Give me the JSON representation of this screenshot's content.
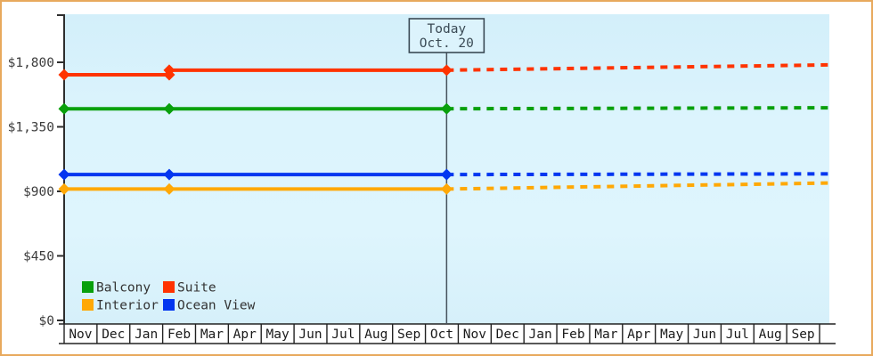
{
  "colors": {
    "frame_border": "#E8A95D",
    "plot_bg_top": "#D3EFFA",
    "plot_bg_mid": "#DDF5FD",
    "plot_bg_bottom": "#D6F0FA",
    "axis": "#2E2E2E",
    "axis_text": "#3C3C3C",
    "month_text": "#1A1A1A",
    "today_line": "#46525C",
    "today_box_fill": "#DCF3FC",
    "today_box_border": "#3A4A55",
    "legend_text": "#333333"
  },
  "chart_data": {
    "type": "line",
    "title": "",
    "xlabel": "",
    "ylabel": "",
    "ylim": [
      0,
      1800
    ],
    "xlim_months": [
      0,
      23.3
    ],
    "grid": false,
    "history_style": "solid",
    "forecast_style": "dotted",
    "y_ticks": [
      {
        "label": "$0",
        "value": 0
      },
      {
        "label": "$450",
        "value": 450
      },
      {
        "label": "$900",
        "value": 900
      },
      {
        "label": "$1,350",
        "value": 1350
      },
      {
        "label": "$1,800",
        "value": 1800
      }
    ],
    "x_axis_months": [
      "Nov",
      "Dec",
      "Jan",
      "Feb",
      "Mar",
      "Apr",
      "May",
      "Jun",
      "Jul",
      "Aug",
      "Sep",
      "Oct",
      "Nov",
      "Dec",
      "Jan",
      "Feb",
      "Mar",
      "Apr",
      "May",
      "Jun",
      "Jul",
      "Aug",
      "Sep"
    ],
    "today": {
      "title": "Today",
      "date": "Oct. 20",
      "month_position": 11.645
    },
    "series": [
      {
        "name": "Balcony",
        "color": "#09A00C",
        "history": [
          [
            0,
            1476
          ],
          [
            3.2,
            1476
          ],
          [
            11.645,
            1476
          ]
        ],
        "forecast": [
          [
            11.645,
            1476
          ],
          [
            23.3,
            1483
          ]
        ]
      },
      {
        "name": "Suite",
        "color": "#FF3300",
        "history": [
          [
            0,
            1713
          ],
          [
            3.2,
            1713
          ],
          [
            3.2,
            1745
          ],
          [
            11.645,
            1745
          ]
        ],
        "forecast": [
          [
            11.645,
            1745
          ],
          [
            23.3,
            1782
          ]
        ]
      },
      {
        "name": "Interior",
        "color": "#FFA805",
        "history": [
          [
            0,
            916
          ],
          [
            3.2,
            916
          ],
          [
            11.645,
            916
          ]
        ],
        "forecast": [
          [
            11.645,
            916
          ],
          [
            23.3,
            958
          ]
        ]
      },
      {
        "name": "Ocean View",
        "color": "#0336F0",
        "history": [
          [
            0,
            1017
          ],
          [
            3.2,
            1017
          ],
          [
            11.645,
            1017
          ]
        ],
        "forecast": [
          [
            11.645,
            1017
          ],
          [
            23.3,
            1022
          ]
        ]
      }
    ],
    "legend": {
      "position": "bottom-left",
      "rows": [
        [
          "Balcony",
          "Suite"
        ],
        [
          "Interior",
          "Ocean View"
        ]
      ]
    }
  }
}
